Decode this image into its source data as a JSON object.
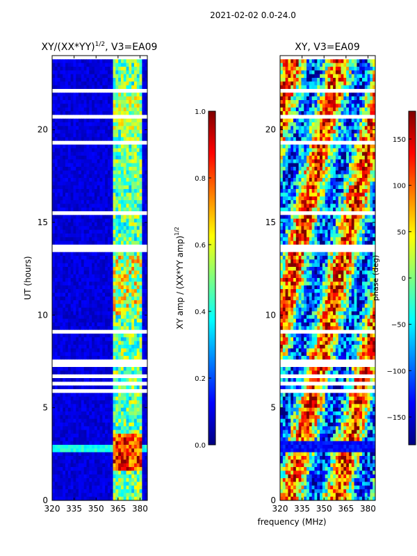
{
  "figure_title": "2021-02-02 0.0-24.0",
  "shared_xlabel": "frequency (MHz)",
  "colors": {
    "jet": [
      "#00007f",
      "#0000ff",
      "#007fff",
      "#00ffff",
      "#7fff7f",
      "#ffff00",
      "#ff7f00",
      "#ff0000",
      "#7f0000"
    ],
    "gap": "#ffffff",
    "axis": "#000000"
  },
  "chart_data": [
    {
      "type": "heatmap",
      "title": "XY/(XX*YY)^1/2, V3=EA09",
      "title_main": "XY/(XX*YY)",
      "title_exp": "1/2",
      "title_tail": ", V3=EA09",
      "xlabel": "",
      "ylabel": "UT (hours)",
      "xlim": [
        320,
        385
      ],
      "ylim": [
        0,
        24
      ],
      "xticks": [
        "320",
        "335",
        "350",
        "365",
        "380"
      ],
      "yticks": [
        "0",
        "5",
        "10",
        "15",
        "20"
      ],
      "colorbar": {
        "label": "XY amp / (XX*YY amp)^1/2",
        "label_main": "XY amp / (XX*YY amp)",
        "label_exp": "1/2",
        "range": [
          0.0,
          1.0
        ],
        "ticks": [
          "0.0",
          "0.2",
          "0.4",
          "0.6",
          "0.8",
          "1.0"
        ]
      }
    },
    {
      "type": "heatmap",
      "title": "XY, V3=EA09",
      "xlabel": "frequency (MHz)",
      "ylabel": "",
      "xlim": [
        320,
        385
      ],
      "ylim": [
        0,
        24
      ],
      "xticks": [
        "320",
        "335",
        "350",
        "365",
        "380"
      ],
      "yticks": [
        "0",
        "5",
        "10",
        "15",
        "20"
      ],
      "colorbar": {
        "label": "phase (deg)",
        "range": [
          -180,
          180
        ],
        "ticks": [
          "−150",
          "−100",
          "−50",
          "0",
          "50",
          "100",
          "150"
        ]
      }
    }
  ]
}
